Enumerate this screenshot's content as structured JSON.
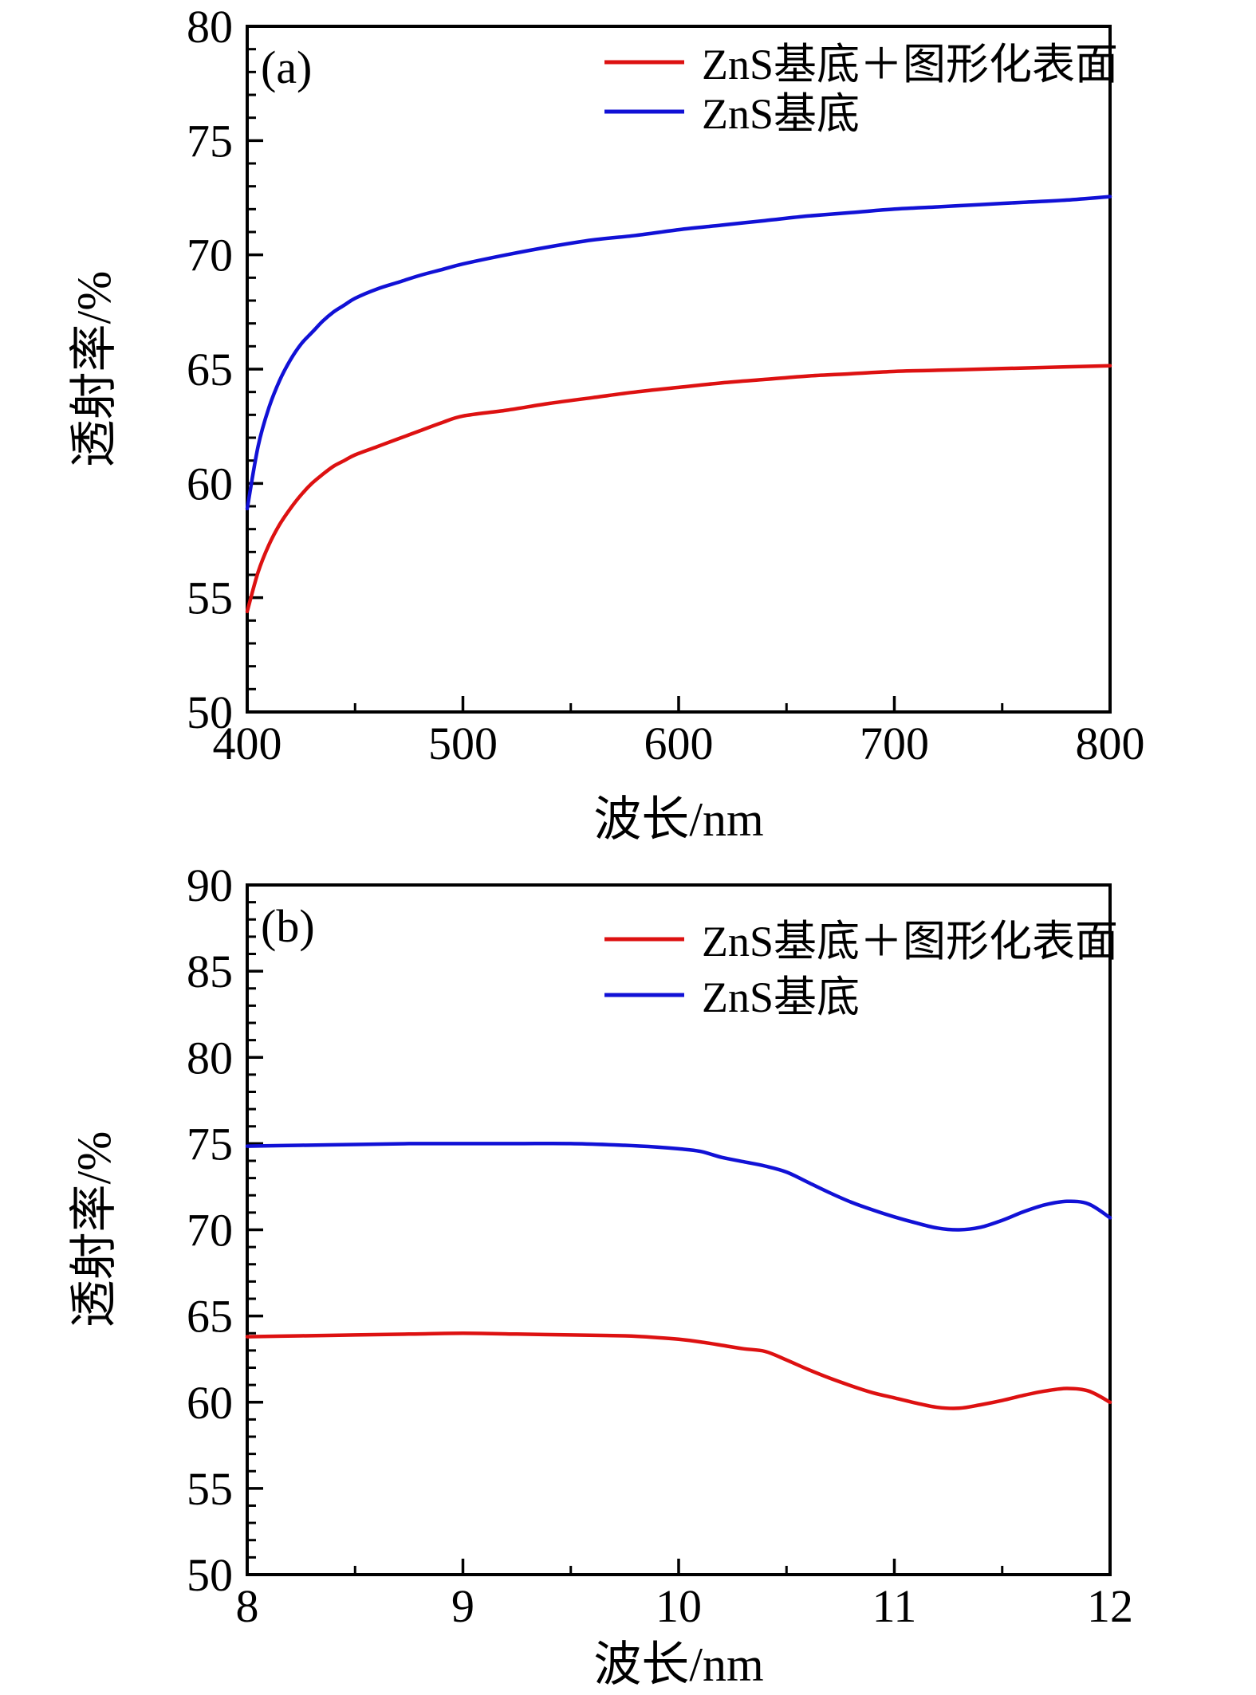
{
  "figure": {
    "background": "#ffffff",
    "axis_color": "#000000",
    "red_hex": "#dd1111",
    "blue_hex": "#1111d6"
  },
  "chart_data": [
    {
      "type": "line",
      "panel_label": "(a)",
      "xlabel": "波长/nm",
      "ylabel": "透射率/%",
      "xlim": [
        400,
        800
      ],
      "ylim": [
        50,
        80
      ],
      "x_major_ticks": [
        400,
        500,
        600,
        700,
        800
      ],
      "x_tick_labels": [
        "400",
        "500",
        "600",
        "700",
        "800"
      ],
      "x_minor_step": 50,
      "y_major_ticks": [
        50,
        55,
        60,
        65,
        70,
        75,
        80
      ],
      "y_tick_labels": [
        "50",
        "55",
        "60",
        "65",
        "70",
        "75",
        "80"
      ],
      "y_minor_step": 1,
      "grid": "off",
      "legend_position": "top-right-inside",
      "series": [
        {
          "name": "ZnS基底＋图形化表面",
          "color": "#dd1111",
          "x": [
            400,
            405,
            410,
            415,
            420,
            425,
            430,
            435,
            440,
            445,
            450,
            460,
            470,
            480,
            490,
            500,
            520,
            540,
            560,
            580,
            600,
            620,
            640,
            660,
            680,
            700,
            720,
            740,
            760,
            780,
            800
          ],
          "y": [
            54.4,
            56.1,
            57.3,
            58.2,
            58.9,
            59.5,
            60.0,
            60.4,
            60.75,
            61.0,
            61.25,
            61.6,
            61.95,
            62.3,
            62.65,
            62.95,
            63.2,
            63.5,
            63.75,
            64.0,
            64.2,
            64.4,
            64.55,
            64.7,
            64.8,
            64.9,
            64.95,
            65.0,
            65.05,
            65.1,
            65.15
          ]
        },
        {
          "name": "ZnS基底",
          "color": "#1111d6",
          "x": [
            400,
            405,
            410,
            415,
            420,
            425,
            430,
            435,
            440,
            445,
            450,
            460,
            470,
            480,
            490,
            500,
            520,
            540,
            560,
            580,
            600,
            620,
            640,
            660,
            680,
            700,
            720,
            740,
            760,
            780,
            800
          ],
          "y": [
            58.9,
            61.6,
            63.3,
            64.5,
            65.4,
            66.1,
            66.6,
            67.1,
            67.5,
            67.8,
            68.1,
            68.5,
            68.8,
            69.1,
            69.35,
            69.6,
            70.0,
            70.35,
            70.65,
            70.85,
            71.1,
            71.3,
            71.5,
            71.7,
            71.85,
            72.0,
            72.1,
            72.2,
            72.3,
            72.4,
            72.55
          ]
        }
      ]
    },
    {
      "type": "line",
      "panel_label": "(b)",
      "xlabel": "波长/nm",
      "ylabel": "透射率/%",
      "xlim": [
        8,
        12
      ],
      "ylim": [
        50,
        90
      ],
      "x_major_ticks": [
        8,
        9,
        10,
        11,
        12
      ],
      "x_tick_labels": [
        "8",
        "9",
        "10",
        "11",
        "12"
      ],
      "x_minor_step": 0.5,
      "y_major_ticks": [
        50,
        55,
        60,
        65,
        70,
        75,
        80,
        85,
        90
      ],
      "y_tick_labels": [
        "50",
        "55",
        "60",
        "65",
        "70",
        "75",
        "80",
        "85",
        "90"
      ],
      "y_minor_step": 1,
      "grid": "off",
      "legend_position": "top-right-inside",
      "series": [
        {
          "name": "ZnS基底＋图形化表面",
          "color": "#dd1111",
          "x": [
            8,
            8.25,
            8.5,
            8.75,
            9,
            9.25,
            9.5,
            9.75,
            9.9,
            10,
            10.1,
            10.2,
            10.3,
            10.4,
            10.5,
            10.6,
            10.7,
            10.8,
            10.9,
            11,
            11.1,
            11.2,
            11.3,
            11.4,
            11.5,
            11.6,
            11.7,
            11.8,
            11.9,
            12
          ],
          "y": [
            63.8,
            63.85,
            63.9,
            63.95,
            64.0,
            63.95,
            63.9,
            63.85,
            63.75,
            63.65,
            63.5,
            63.3,
            63.1,
            62.95,
            62.45,
            61.9,
            61.4,
            60.95,
            60.55,
            60.25,
            59.95,
            59.7,
            59.65,
            59.85,
            60.1,
            60.4,
            60.65,
            60.8,
            60.65,
            60.0
          ]
        },
        {
          "name": "ZnS基底",
          "color": "#1111d6",
          "x": [
            8,
            8.25,
            8.5,
            8.75,
            9,
            9.25,
            9.5,
            9.75,
            9.9,
            10,
            10.1,
            10.2,
            10.3,
            10.4,
            10.5,
            10.6,
            10.7,
            10.8,
            10.9,
            11,
            11.1,
            11.2,
            11.3,
            11.4,
            11.5,
            11.6,
            11.7,
            11.8,
            11.9,
            12
          ],
          "y": [
            74.85,
            74.9,
            74.95,
            75.0,
            75.0,
            75.0,
            75.0,
            74.9,
            74.8,
            74.7,
            74.55,
            74.2,
            73.95,
            73.7,
            73.35,
            72.75,
            72.15,
            71.6,
            71.15,
            70.75,
            70.4,
            70.1,
            70.0,
            70.15,
            70.55,
            71.05,
            71.45,
            71.65,
            71.5,
            70.7
          ]
        }
      ]
    }
  ]
}
